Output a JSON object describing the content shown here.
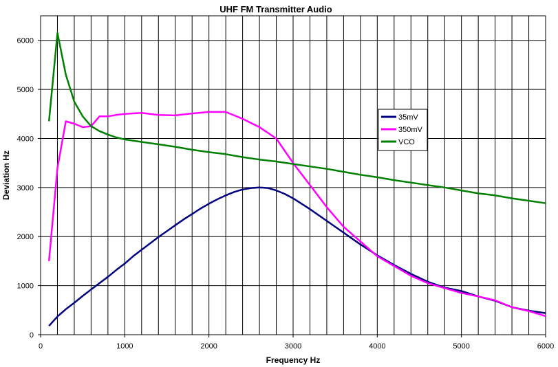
{
  "chart_data": {
    "type": "line",
    "title": "UHF FM Transmitter Audio",
    "xlabel": "Frequency Hz",
    "ylabel": "Deviation Hz",
    "xlim": [
      0,
      6000
    ],
    "ylim": [
      0,
      6500
    ],
    "xticks": [
      0,
      1000,
      2000,
      3000,
      4000,
      5000,
      6000
    ],
    "yticks": [
      0,
      1000,
      2000,
      3000,
      4000,
      5000,
      6000
    ],
    "x_gridlines": [
      0,
      200,
      400,
      600,
      800,
      1000,
      1200,
      1400,
      1600,
      1800,
      2000,
      2200,
      2400,
      2600,
      2800,
      3000,
      3200,
      3400,
      3600,
      3800,
      4000,
      4200,
      4400,
      4600,
      4800,
      5000,
      5200,
      5400,
      5600,
      5800,
      6000
    ],
    "y_gridlines": [
      0,
      1000,
      2000,
      3000,
      4000,
      5000,
      6000
    ],
    "grid": true,
    "legend_position": "upper-middle-right",
    "series": [
      {
        "name": "35mV",
        "color": "#000080",
        "x": [
          100,
          200,
          300,
          400,
          500,
          600,
          700,
          800,
          900,
          1000,
          1100,
          1200,
          1300,
          1400,
          1500,
          1600,
          1700,
          1800,
          1900,
          2000,
          2100,
          2200,
          2300,
          2400,
          2500,
          2600,
          2700,
          2800,
          2900,
          3000,
          3200,
          3400,
          3600,
          3800,
          4000,
          4200,
          4400,
          4600,
          4800,
          5000,
          5200,
          5400,
          5600,
          5800,
          6000
        ],
        "y": [
          180,
          370,
          520,
          650,
          790,
          920,
          1050,
          1180,
          1320,
          1450,
          1600,
          1730,
          1860,
          1990,
          2110,
          2230,
          2350,
          2460,
          2570,
          2670,
          2760,
          2840,
          2910,
          2960,
          2990,
          3000,
          2990,
          2940,
          2870,
          2780,
          2560,
          2320,
          2080,
          1840,
          1620,
          1420,
          1240,
          1080,
          960,
          890,
          780,
          690,
          560,
          490,
          440
        ]
      },
      {
        "name": "350mV",
        "color": "#ff00ff",
        "x": [
          100,
          200,
          300,
          400,
          500,
          600,
          700,
          800,
          900,
          1000,
          1200,
          1400,
          1600,
          1800,
          2000,
          2200,
          2400,
          2600,
          2800,
          3000,
          3200,
          3400,
          3600,
          3800,
          4000,
          4200,
          4400,
          4600,
          4800,
          5000,
          5200,
          5400,
          5600,
          5800,
          6000
        ],
        "y": [
          1500,
          3400,
          4350,
          4300,
          4230,
          4250,
          4450,
          4450,
          4480,
          4500,
          4520,
          4480,
          4470,
          4510,
          4540,
          4540,
          4400,
          4230,
          4000,
          3500,
          3050,
          2600,
          2200,
          1900,
          1600,
          1400,
          1200,
          1050,
          950,
          850,
          780,
          700,
          560,
          480,
          380
        ]
      },
      {
        "name": "VCO",
        "color": "#008000",
        "x": [
          100,
          200,
          300,
          400,
          500,
          600,
          700,
          800,
          900,
          1000,
          1200,
          1400,
          1600,
          1800,
          2000,
          2200,
          2400,
          2600,
          2800,
          3000,
          3200,
          3400,
          3600,
          3800,
          4000,
          4200,
          4400,
          4600,
          4800,
          5000,
          5200,
          5400,
          5600,
          5800,
          6000
        ],
        "y": [
          4350,
          6150,
          5300,
          4750,
          4450,
          4250,
          4150,
          4080,
          4020,
          3980,
          3930,
          3880,
          3830,
          3770,
          3720,
          3680,
          3620,
          3570,
          3530,
          3480,
          3430,
          3380,
          3320,
          3260,
          3210,
          3150,
          3100,
          3050,
          3000,
          2940,
          2880,
          2840,
          2780,
          2730,
          2680
        ]
      }
    ]
  }
}
